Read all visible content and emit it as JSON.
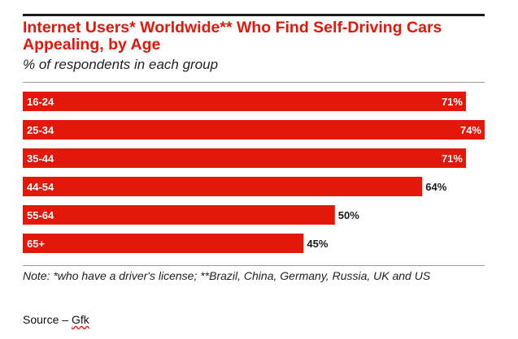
{
  "chart_data": {
    "type": "bar",
    "orientation": "horizontal",
    "title": "Internet Users* Worldwide** Who Find Self-Driving Cars Appealing, by Age",
    "subtitle": "% of respondents in each group",
    "categories": [
      "16-24",
      "25-34",
      "35-44",
      "44-54",
      "55-64",
      "65+"
    ],
    "values": [
      71,
      74,
      71,
      64,
      50,
      45
    ],
    "value_labels": [
      "71%",
      "74%",
      "71%",
      "64%",
      "50%",
      "45%"
    ],
    "xlim": [
      0,
      74
    ],
    "bar_color": "#e3170a",
    "note": "Note: *who have a driver's license; **Brazil, China, Germany, Russia, UK and US"
  },
  "source": {
    "prefix": "Source – ",
    "name": "Gfk"
  }
}
